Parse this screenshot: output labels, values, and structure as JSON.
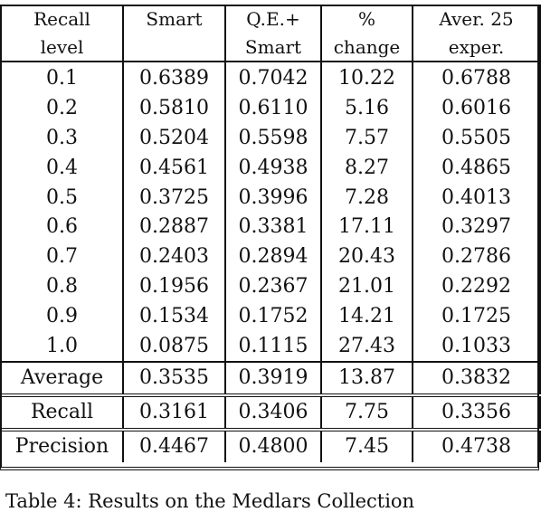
{
  "table": {
    "header": [
      [
        "Recall",
        "level"
      ],
      [
        "Smart",
        ""
      ],
      [
        "Q.E.+",
        "Smart"
      ],
      [
        "%",
        "change"
      ],
      [
        "Aver. 25",
        "exper."
      ]
    ],
    "rows": [
      [
        "0.1",
        "0.6389",
        "0.7042",
        "10.22",
        "0.6788"
      ],
      [
        "0.2",
        "0.5810",
        "0.6110",
        "5.16",
        "0.6016"
      ],
      [
        "0.3",
        "0.5204",
        "0.5598",
        "7.57",
        "0.5505"
      ],
      [
        "0.4",
        "0.4561",
        "0.4938",
        "8.27",
        "0.4865"
      ],
      [
        "0.5",
        "0.3725",
        "0.3996",
        "7.28",
        "0.4013"
      ],
      [
        "0.6",
        "0.2887",
        "0.3381",
        "17.11",
        "0.3297"
      ],
      [
        "0.7",
        "0.2403",
        "0.2894",
        "20.43",
        "0.2786"
      ],
      [
        "0.8",
        "0.1956",
        "0.2367",
        "21.01",
        "0.2292"
      ],
      [
        "0.9",
        "0.1534",
        "0.1752",
        "14.21",
        "0.1725"
      ],
      [
        "1.0",
        "0.0875",
        "0.1115",
        "27.43",
        "0.1033"
      ]
    ],
    "average": [
      "Average",
      "0.3535",
      "0.3919",
      "13.87",
      "0.3832"
    ],
    "recall": [
      "Recall",
      "0.3161",
      "0.3406",
      "7.75",
      "0.3356"
    ],
    "precision": [
      "Precision",
      "0.4467",
      "0.4800",
      "7.45",
      "0.4738"
    ]
  },
  "caption": "Table 4: Results on the Medlars Collection"
}
